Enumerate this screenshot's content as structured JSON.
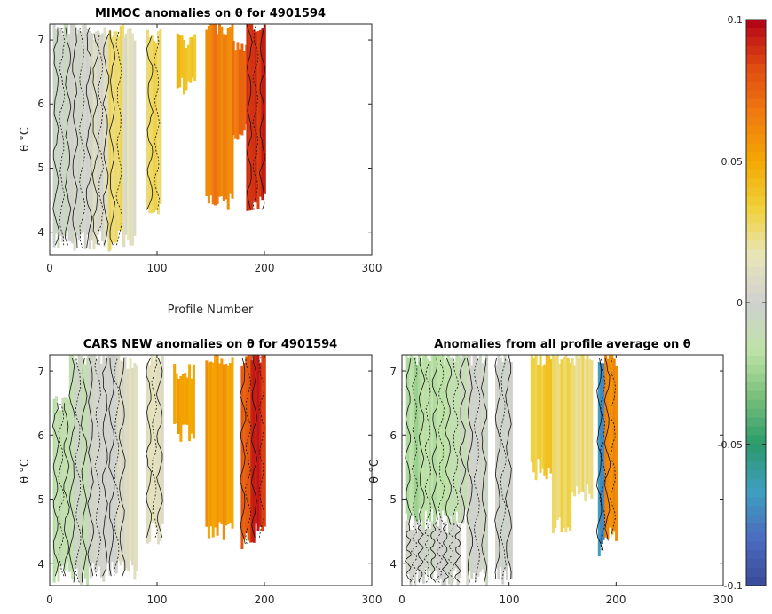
{
  "chart_data": [
    {
      "type": "heatmap",
      "title": "MIMOC anomalies on θ  for 4901594",
      "xlabel": "Profile Number",
      "ylabel": "θ °C",
      "xlim": [
        0,
        300
      ],
      "ylim": [
        3.65,
        7.25
      ],
      "xticks": [
        "0",
        "100",
        "200",
        "300"
      ],
      "yticks": [
        "4",
        "5",
        "6",
        "7"
      ],
      "grid": false,
      "stripes": [
        {
          "x": [
            3,
            20
          ],
          "y": [
            3.8,
            7.2
          ],
          "v": -0.004,
          "contours": true
        },
        {
          "x": [
            20,
            40
          ],
          "y": [
            3.75,
            7.2
          ],
          "v": 0.0,
          "contours": true
        },
        {
          "x": [
            40,
            55
          ],
          "y": [
            3.8,
            7.1
          ],
          "v": 0.006,
          "contours": true
        },
        {
          "x": [
            55,
            68
          ],
          "y": [
            3.8,
            7.15
          ],
          "v": 0.025,
          "contours": true
        },
        {
          "x": [
            68,
            80
          ],
          "y": [
            3.8,
            7.1
          ],
          "v": 0.012,
          "contours": false
        },
        {
          "x": [
            90,
            103
          ],
          "y": [
            4.35,
            7.05
          ],
          "v": 0.03,
          "contours": true
        },
        {
          "x": [
            118,
            135
          ],
          "y": [
            6.2,
            7.0
          ],
          "v": 0.04,
          "contours": false
        },
        {
          "x": [
            145,
            170
          ],
          "y": [
            4.4,
            7.2
          ],
          "v": 0.065,
          "contours": false
        },
        {
          "x": [
            170,
            183
          ],
          "y": [
            5.5,
            6.9
          ],
          "v": 0.07,
          "contours": false
        },
        {
          "x": [
            183,
            201
          ],
          "y": [
            4.35,
            7.25
          ],
          "v": 0.09,
          "contours": true
        }
      ]
    },
    {
      "type": "heatmap",
      "title": "CARS NEW anomalies on θ for 4901594",
      "ylabel": "θ °C",
      "xlim": [
        0,
        300
      ],
      "ylim": [
        3.65,
        7.25
      ],
      "xticks": [
        "0",
        "100",
        "200",
        "300"
      ],
      "yticks": [
        "4",
        "5",
        "6",
        "7"
      ],
      "grid": false,
      "stripes": [
        {
          "x": [
            3,
            18
          ],
          "y": [
            3.8,
            6.5
          ],
          "v": -0.015,
          "contours": true
        },
        {
          "x": [
            18,
            35
          ],
          "y": [
            3.7,
            7.2
          ],
          "v": -0.01,
          "contours": true
        },
        {
          "x": [
            35,
            55
          ],
          "y": [
            3.8,
            7.2
          ],
          "v": 0.0,
          "contours": true
        },
        {
          "x": [
            55,
            70
          ],
          "y": [
            3.8,
            7.2
          ],
          "v": 0.004,
          "contours": true
        },
        {
          "x": [
            70,
            82
          ],
          "y": [
            3.8,
            7.1
          ],
          "v": 0.012,
          "contours": false
        },
        {
          "x": [
            90,
            105
          ],
          "y": [
            4.4,
            7.2
          ],
          "v": 0.01,
          "contours": true
        },
        {
          "x": [
            115,
            135
          ],
          "y": [
            6.0,
            7.0
          ],
          "v": 0.05,
          "contours": false
        },
        {
          "x": [
            145,
            170
          ],
          "y": [
            4.45,
            7.2
          ],
          "v": 0.055,
          "contours": false
        },
        {
          "x": [
            178,
            187
          ],
          "y": [
            4.3,
            7.2
          ],
          "v": 0.075,
          "contours": true
        },
        {
          "x": [
            187,
            201
          ],
          "y": [
            4.4,
            7.25
          ],
          "v": 0.09,
          "contours": true
        }
      ]
    },
    {
      "type": "heatmap",
      "title": "Anomalies from all profile average on θ",
      "ylabel": "θ °C",
      "xlim": [
        0,
        300
      ],
      "ylim": [
        3.65,
        7.25
      ],
      "xticks": [
        "0",
        "100",
        "200",
        "300"
      ],
      "yticks": [
        "4",
        "5",
        "6",
        "7"
      ],
      "grid": false,
      "stripes": [
        {
          "x": [
            3,
            40
          ],
          "y": [
            4.6,
            7.2
          ],
          "v": -0.02,
          "contours": true
        },
        {
          "x": [
            3,
            55
          ],
          "y": [
            3.7,
            4.6
          ],
          "v": 0.0,
          "contours": true
        },
        {
          "x": [
            40,
            60
          ],
          "y": [
            4.6,
            7.2
          ],
          "v": -0.012,
          "contours": true
        },
        {
          "x": [
            60,
            80
          ],
          "y": [
            3.7,
            7.2
          ],
          "v": 0.0,
          "contours": true
        },
        {
          "x": [
            87,
            102
          ],
          "y": [
            3.75,
            7.2
          ],
          "v": 0.0,
          "contours": true
        },
        {
          "x": [
            120,
            140
          ],
          "y": [
            5.4,
            7.2
          ],
          "v": 0.035,
          "contours": false
        },
        {
          "x": [
            140,
            158
          ],
          "y": [
            4.5,
            7.2
          ],
          "v": 0.03,
          "contours": false
        },
        {
          "x": [
            158,
            178
          ],
          "y": [
            5.0,
            7.2
          ],
          "v": 0.025,
          "contours": false
        },
        {
          "x": [
            183,
            189
          ],
          "y": [
            4.2,
            7.2
          ],
          "v": -0.07,
          "contours": true
        },
        {
          "x": [
            189,
            200
          ],
          "y": [
            4.35,
            7.2
          ],
          "v": 0.06,
          "contours": true
        }
      ]
    }
  ],
  "colorbar": {
    "min": -0.1,
    "max": 0.1,
    "ticks": [
      {
        "value": 0.1,
        "label": "0.1"
      },
      {
        "value": 0.05,
        "label": "0.05"
      },
      {
        "value": 0,
        "label": "0"
      },
      {
        "value": -0.05,
        "label": "-0.05"
      },
      {
        "value": -0.1,
        "label": "-0.1"
      }
    ],
    "colors": [
      "#3a4a9a",
      "#4a6cc0",
      "#3f9fc0",
      "#2a9a6a",
      "#7ac07a",
      "#bfe3a8",
      "#d0d0d0",
      "#e8e6b8",
      "#f0d03a",
      "#f3a800",
      "#f07a10",
      "#e04a10",
      "#b2001a"
    ]
  }
}
